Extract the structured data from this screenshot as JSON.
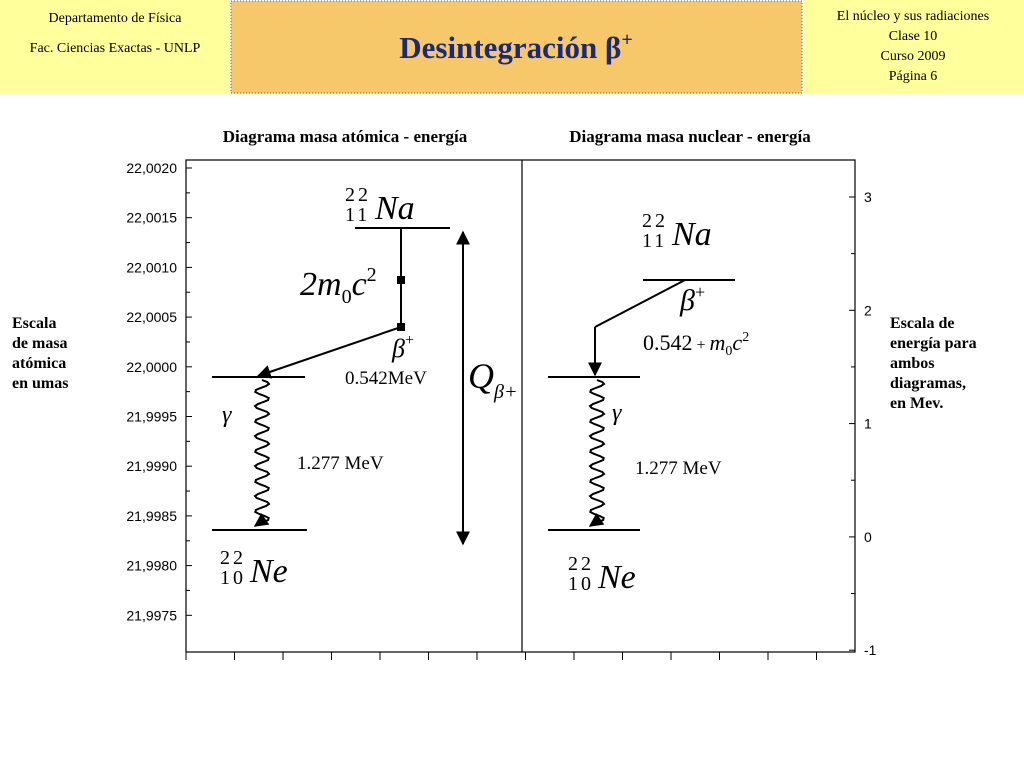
{
  "header": {
    "left": [
      "Departamento de Física",
      "Fac. Ciencias Exactas - UNLP"
    ],
    "title": "Desintegración β",
    "title_sup": "+",
    "right": [
      "El núcleo y sus radiaciones",
      "Clase 10",
      "Curso 2009",
      "Página 6"
    ]
  },
  "diagram": {
    "left_title": "Diagrama masa atómica - energía",
    "right_title": "Diagrama masa nuclear - energía",
    "left_axis_ticks": [
      "22,0020",
      "22,0015",
      "22,0010",
      "22,0005",
      "22,0000",
      "21,9995",
      "21,9990",
      "21,9985",
      "21,9980",
      "21,9975"
    ],
    "right_axis_ticks": [
      "3",
      "2",
      "1",
      "0",
      "-1"
    ],
    "left_scale_label": [
      "Escala",
      "de masa",
      "atómica",
      "en umas"
    ],
    "right_scale_label": [
      "Escala de",
      "energía para",
      "ambos",
      "diagramas,",
      "en Mev."
    ],
    "left": {
      "parent": {
        "mass": "22",
        "z": "11",
        "symbol": "Na"
      },
      "daughter": {
        "mass": "22",
        "z": "10",
        "symbol": "Ne"
      },
      "mass_term": {
        "coef": "2m",
        "sub": "0",
        "c": "c",
        "sup": "2"
      },
      "beta": {
        "symbol": "β",
        "charge": "+"
      },
      "beta_energy": "0.542MeV",
      "gamma": "γ",
      "gamma_energy": "1.277 MeV",
      "q": {
        "symbol": "Q",
        "sub": "β+"
      }
    },
    "right": {
      "parent": {
        "mass": "22",
        "z": "11",
        "symbol": "Na"
      },
      "daughter": {
        "mass": "22",
        "z": "10",
        "symbol": "Ne"
      },
      "beta": {
        "symbol": "β",
        "charge": "+"
      },
      "beta_energy": {
        "value": "0.542",
        "plus": "+",
        "m": "m",
        "sub": "0",
        "c": "c",
        "sup": "2"
      },
      "gamma": "γ",
      "gamma_energy": "1.277 MeV"
    }
  }
}
